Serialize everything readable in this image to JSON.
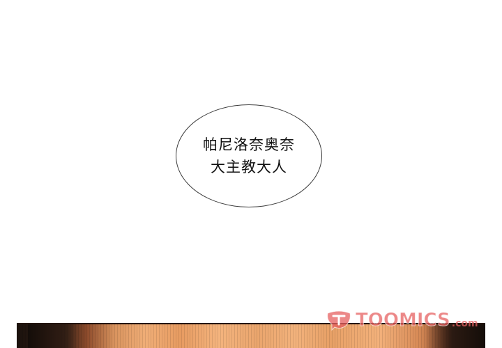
{
  "speech_bubble": {
    "line1": "帕尼洛奈奥奈",
    "line2": "大主教大人"
  },
  "watermark": {
    "text": "TOOMICS",
    "suffix": ".com"
  },
  "colors": {
    "background": "#ffffff",
    "bubble_border": "#3a3a3a",
    "watermark": "#e66060",
    "skin_tone": "#f0ae77",
    "hair_dark": "#1b120d"
  }
}
